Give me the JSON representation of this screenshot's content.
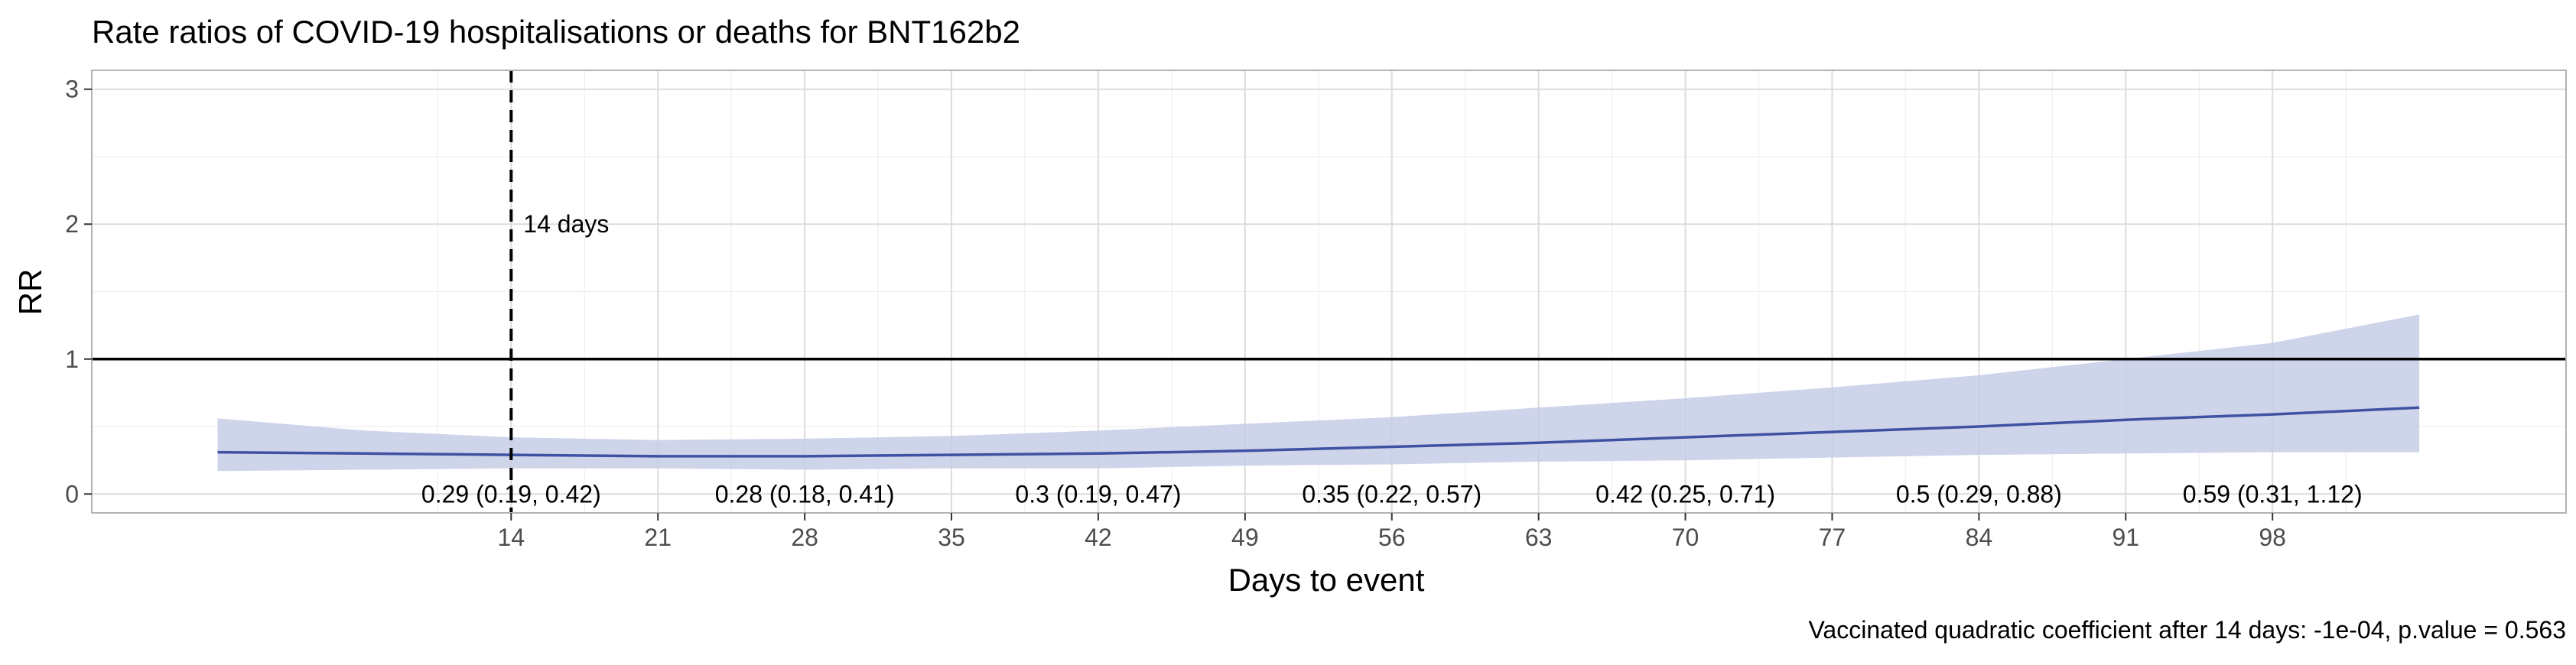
{
  "chart_data": {
    "type": "line",
    "title": "Rate ratios of COVID-19 hospitalisations or deaths for BNT162b2",
    "xlabel": "Days to event",
    "ylabel": "RR",
    "caption": "Vaccinated quadratic coefficient after 14 days: -1e-04, p.value = 0.563",
    "xlim": [
      -6,
      112
    ],
    "ylim": [
      -0.14,
      3.14
    ],
    "x_ticks": [
      14,
      21,
      28,
      35,
      42,
      49,
      56,
      63,
      70,
      77,
      84,
      91,
      98
    ],
    "x_tick_labels": [
      "14",
      "21",
      "28",
      "35",
      "42",
      "49",
      "56",
      "63",
      "70",
      "77",
      "84",
      "91",
      "98"
    ],
    "y_ticks": [
      0,
      1,
      2,
      3
    ],
    "y_tick_labels": [
      "0",
      "1",
      "2",
      "3"
    ],
    "grid": true,
    "reference_line": {
      "y": 1
    },
    "vline": {
      "x": 14,
      "style": "dashed",
      "label": "14 days"
    },
    "series": [
      {
        "x": [
          0,
          7,
          14,
          21,
          28,
          35,
          42,
          49,
          56,
          63,
          70,
          77,
          84,
          91,
          98,
          105
        ],
        "y": [
          0.31,
          0.3,
          0.29,
          0.28,
          0.28,
          0.29,
          0.3,
          0.32,
          0.35,
          0.38,
          0.42,
          0.46,
          0.5,
          0.55,
          0.59,
          0.64
        ],
        "lower": [
          0.17,
          0.18,
          0.19,
          0.19,
          0.18,
          0.19,
          0.19,
          0.21,
          0.22,
          0.24,
          0.25,
          0.27,
          0.29,
          0.3,
          0.31,
          0.31
        ],
        "upper": [
          0.56,
          0.47,
          0.42,
          0.4,
          0.41,
          0.43,
          0.47,
          0.52,
          0.57,
          0.64,
          0.71,
          0.79,
          0.88,
          1.0,
          1.12,
          1.33
        ]
      }
    ],
    "annotations": [
      {
        "x": 14,
        "text": "0.29 (0.19, 0.42)"
      },
      {
        "x": 28,
        "text": "0.28 (0.18, 0.41)"
      },
      {
        "x": 42,
        "text": "0.3 (0.19, 0.47)"
      },
      {
        "x": 56,
        "text": "0.35 (0.22, 0.57)"
      },
      {
        "x": 70,
        "text": "0.42 (0.25, 0.71)"
      },
      {
        "x": 84,
        "text": "0.5 (0.29, 0.88)"
      },
      {
        "x": 98,
        "text": "0.59 (0.31, 1.12)"
      }
    ],
    "colors": {
      "line": "#3f51a3",
      "band": "#c5cce6",
      "reference_line": "#000000",
      "vline": "#000000"
    }
  }
}
